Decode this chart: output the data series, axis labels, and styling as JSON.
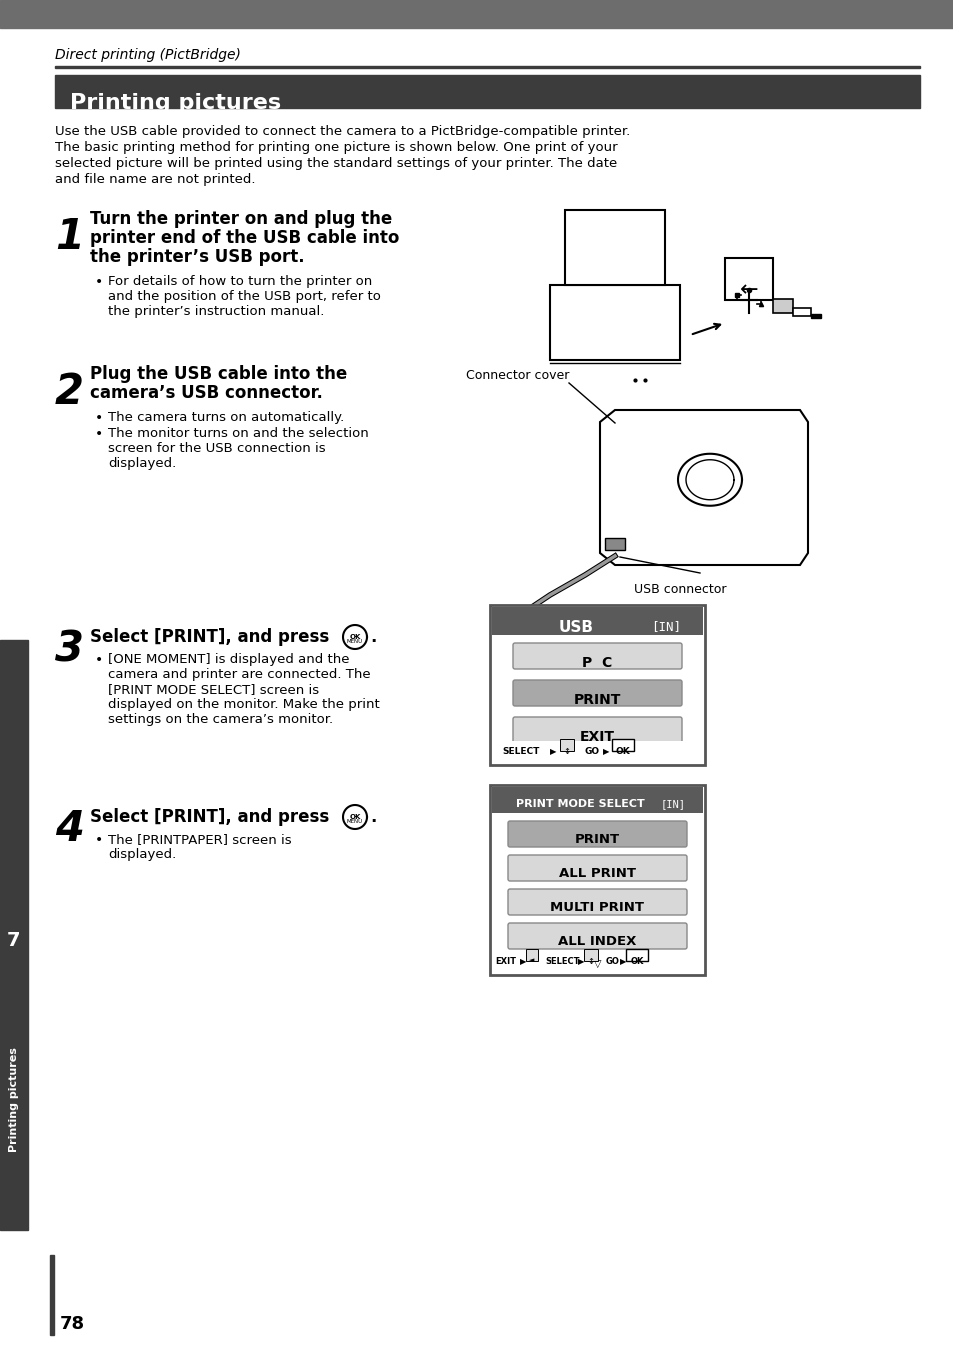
{
  "page_bg": "#ffffff",
  "header_bar_color": "#6d6d6d",
  "section_bar_color": "#3c3c3c",
  "section_title": "Printing pictures",
  "section_title_color": "#ffffff",
  "header_text": "Direct printing (PictBridge)",
  "intro_text": "Use the USB cable provided to connect the camera to a PictBridge-compatible printer.\nThe basic printing method for printing one picture is shown below. One print of your\nselected picture will be printed using the standard settings of your printer. The date\nand file name are not printed.",
  "step1_heading": [
    "Turn the printer on and plug the",
    "printer end of the USB cable into",
    "the printer’s USB port."
  ],
  "step1_bullet": [
    "For details of how to turn the printer on",
    "and the position of the USB port, refer to",
    "the printer’s instruction manual."
  ],
  "step2_heading": [
    "Plug the USB cable into the",
    "camera’s USB connector."
  ],
  "step2_bullets": [
    "The camera turns on automatically.",
    "The monitor turns on and the selection",
    "screen for the USB connection is",
    "displayed."
  ],
  "step3_heading": "Select [PRINT], and press ",
  "step3_bullets": [
    "[ONE MOMENT] is displayed and the",
    "camera and printer are connected. The",
    "[PRINT MODE SELECT] screen is",
    "displayed on the monitor. Make the print",
    "settings on the camera’s monitor."
  ],
  "step4_heading": "Select [PRINT], and press ",
  "step4_bullets": [
    "The [PRINTPAPER] screen is",
    "displayed."
  ],
  "connector_cover_label": "Connector cover",
  "usb_connector_label": "USB connector",
  "usb_menu_title": "USB",
  "usb_menu_in": "[IN]",
  "usb_menu_items": [
    "P  C",
    "PRINT",
    "EXIT"
  ],
  "usb_menu_item_colors": [
    "#e0e0e0",
    "#a0a0a0",
    "#e0e0e0"
  ],
  "usb_menu_bottom": "SELECT ▶",
  "usb_menu_bottom2": "GO ▶",
  "print_mode_title": "PRINT MODE SELECT",
  "print_mode_in": "[IN]",
  "print_mode_items": [
    "PRINT",
    "ALL PRINT",
    "MULTI PRINT",
    "ALL INDEX"
  ],
  "print_mode_item_colors": [
    "#a0a0a0",
    "#e0e0e0",
    "#e0e0e0",
    "#e0e0e0"
  ],
  "sidebar_label": "Printing pictures",
  "sidebar_number": "7",
  "page_number": "78",
  "text_color": "#000000",
  "white": "#ffffff",
  "dark_bar": "#5a5a5a",
  "light_btn": "#d8d8d8",
  "selected_btn": "#a8a8a8"
}
